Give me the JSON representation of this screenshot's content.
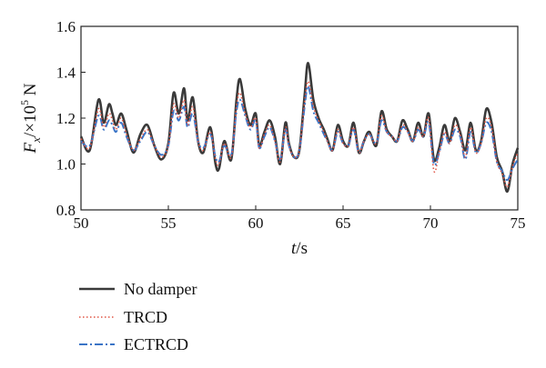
{
  "chart_data": {
    "type": "line",
    "x_axis": {
      "label_italic": "t",
      "label_rest": "/s",
      "range": [
        50,
        75
      ],
      "ticks": [
        50,
        55,
        60,
        65,
        70,
        75
      ],
      "tick_labels": [
        "50",
        "55",
        "60",
        "65",
        "70",
        "75"
      ]
    },
    "y_axis": {
      "label_italic": "F",
      "label_sub": "x",
      "label_mid": "/×10",
      "label_sup": "5",
      "label_unit": " N",
      "range": [
        0.8,
        1.6
      ],
      "ticks": [
        0.8,
        1.0,
        1.2,
        1.4,
        1.6
      ],
      "tick_labels": [
        "0.8",
        "1.0",
        "1.2",
        "1.4",
        "1.6"
      ]
    },
    "grid": false,
    "legend_position": "bottom-left, below plot",
    "x": [
      50.0,
      50.5,
      51.0,
      51.3,
      51.6,
      51.8,
      52.0,
      52.3,
      52.6,
      53.0,
      53.4,
      53.8,
      54.2,
      54.6,
      55.0,
      55.3,
      55.6,
      55.9,
      56.1,
      56.4,
      56.7,
      57.0,
      57.4,
      57.7,
      57.9,
      58.2,
      58.6,
      58.9,
      59.1,
      59.4,
      59.7,
      60.0,
      60.2,
      60.5,
      60.8,
      61.1,
      61.4,
      61.7,
      61.9,
      62.2,
      62.5,
      62.8,
      63.0,
      63.3,
      63.6,
      63.9,
      64.1,
      64.4,
      64.7,
      65.0,
      65.3,
      65.6,
      65.9,
      66.2,
      66.5,
      66.9,
      67.2,
      67.5,
      67.8,
      68.1,
      68.4,
      68.7,
      69.0,
      69.3,
      69.6,
      69.9,
      70.2,
      70.5,
      70.8,
      71.1,
      71.4,
      71.7,
      72.0,
      72.3,
      72.6,
      72.9,
      73.2,
      73.5,
      73.8,
      74.1,
      74.4,
      74.7,
      75.0
    ],
    "series": [
      {
        "name": "No damper",
        "color": "#3a3a3a",
        "style": "solid",
        "values": [
          1.12,
          1.06,
          1.28,
          1.18,
          1.26,
          1.22,
          1.17,
          1.22,
          1.15,
          1.05,
          1.13,
          1.17,
          1.08,
          1.02,
          1.09,
          1.31,
          1.22,
          1.33,
          1.19,
          1.29,
          1.1,
          1.05,
          1.16,
          1.0,
          0.98,
          1.1,
          1.02,
          1.28,
          1.37,
          1.24,
          1.17,
          1.22,
          1.08,
          1.14,
          1.19,
          1.12,
          1.0,
          1.18,
          1.09,
          1.03,
          1.06,
          1.3,
          1.44,
          1.28,
          1.2,
          1.15,
          1.11,
          1.06,
          1.17,
          1.1,
          1.08,
          1.18,
          1.05,
          1.1,
          1.14,
          1.08,
          1.23,
          1.15,
          1.12,
          1.1,
          1.19,
          1.15,
          1.1,
          1.18,
          1.12,
          1.22,
          1.02,
          1.07,
          1.17,
          1.1,
          1.2,
          1.14,
          1.06,
          1.18,
          1.06,
          1.1,
          1.24,
          1.18,
          1.03,
          0.97,
          0.88,
          1.0,
          1.07
        ]
      },
      {
        "name": "TRCD",
        "color": "#e05545",
        "style": "dotted",
        "values": [
          1.11,
          1.07,
          1.24,
          1.16,
          1.22,
          1.19,
          1.15,
          1.2,
          1.13,
          1.06,
          1.11,
          1.15,
          1.08,
          1.03,
          1.08,
          1.26,
          1.2,
          1.28,
          1.17,
          1.25,
          1.1,
          1.06,
          1.14,
          1.02,
          1.0,
          1.09,
          1.03,
          1.25,
          1.31,
          1.22,
          1.16,
          1.2,
          1.07,
          1.13,
          1.17,
          1.1,
          1.01,
          1.16,
          1.08,
          1.03,
          1.06,
          1.27,
          1.36,
          1.25,
          1.19,
          1.14,
          1.1,
          1.06,
          1.15,
          1.09,
          1.08,
          1.16,
          1.05,
          1.1,
          1.13,
          1.09,
          1.21,
          1.14,
          1.12,
          1.1,
          1.17,
          1.14,
          1.1,
          1.16,
          1.12,
          1.2,
          0.97,
          1.05,
          1.14,
          1.09,
          1.17,
          1.13,
          1.03,
          1.16,
          1.05,
          1.09,
          1.2,
          1.16,
          1.01,
          0.96,
          0.9,
          0.99,
          1.05
        ]
      },
      {
        "name": "ECTRCD",
        "color": "#3a74c6",
        "style": "dashdot",
        "values": [
          1.1,
          1.08,
          1.21,
          1.15,
          1.19,
          1.17,
          1.14,
          1.18,
          1.12,
          1.06,
          1.1,
          1.14,
          1.08,
          1.04,
          1.08,
          1.23,
          1.19,
          1.25,
          1.16,
          1.22,
          1.1,
          1.07,
          1.13,
          1.03,
          1.01,
          1.08,
          1.04,
          1.23,
          1.28,
          1.21,
          1.15,
          1.19,
          1.07,
          1.12,
          1.16,
          1.1,
          1.02,
          1.15,
          1.08,
          1.03,
          1.06,
          1.25,
          1.34,
          1.23,
          1.18,
          1.13,
          1.1,
          1.06,
          1.14,
          1.09,
          1.08,
          1.15,
          1.05,
          1.1,
          1.13,
          1.09,
          1.19,
          1.14,
          1.12,
          1.1,
          1.16,
          1.14,
          1.1,
          1.15,
          1.12,
          1.18,
          1.0,
          1.05,
          1.13,
          1.09,
          1.15,
          1.12,
          1.02,
          1.14,
          1.05,
          1.09,
          1.18,
          1.14,
          1.01,
          0.97,
          0.93,
          0.98,
          1.02
        ]
      }
    ]
  }
}
